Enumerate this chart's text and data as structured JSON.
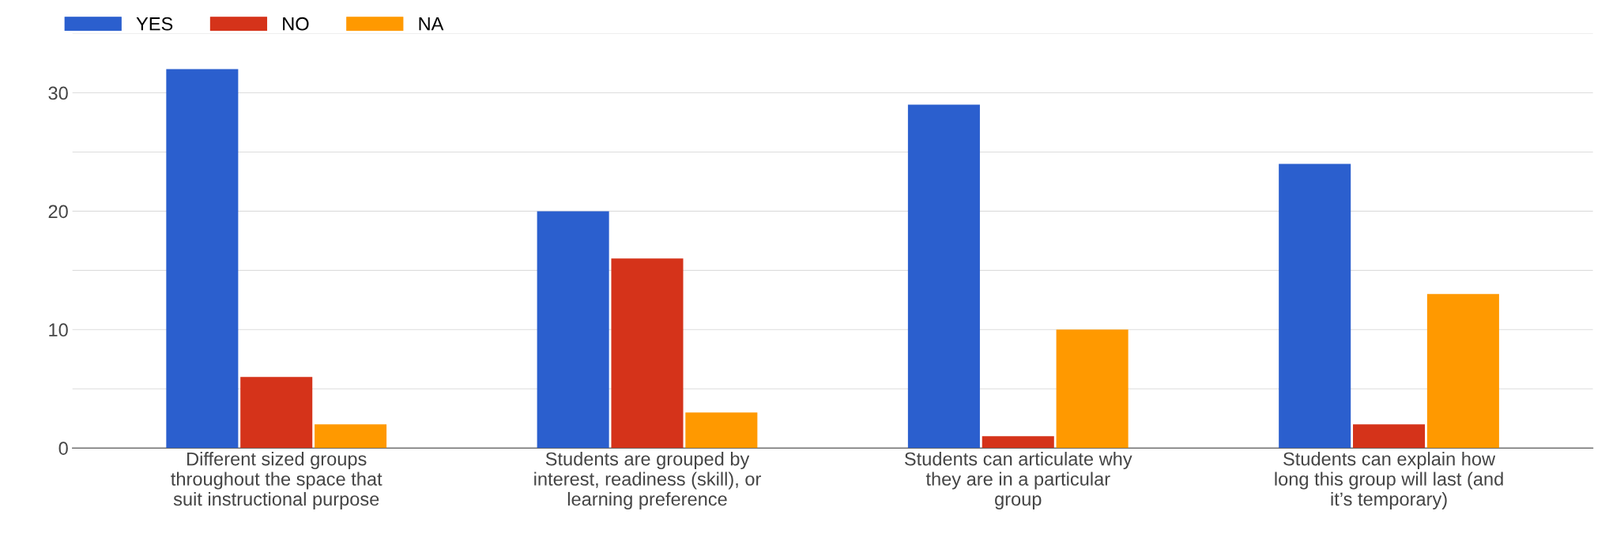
{
  "chart_data": {
    "type": "bar",
    "categories": [
      "Different sized groups\nthroughout the space that\nsuit instructional purpose",
      "Students are grouped by\ninterest, readiness (skill), or\nlearning preference",
      "Students can articulate why\nthey are in a particular\ngroup",
      "Students can explain how\nlong this group will last (and\nit’s temporary)"
    ],
    "series": [
      {
        "name": "YES",
        "color": "#2b5fce",
        "values": [
          32,
          20,
          29,
          24
        ]
      },
      {
        "name": "NO",
        "color": "#d5331a",
        "values": [
          6,
          16,
          1,
          2
        ]
      },
      {
        "name": "NA",
        "color": "#ff9900",
        "values": [
          2,
          3,
          10,
          13
        ]
      }
    ],
    "ylim": [
      0,
      35
    ],
    "yticks": [
      0,
      {
        "value": 5,
        "label": null
      },
      10,
      {
        "value": 15,
        "label": null
      },
      20,
      {
        "value": 25,
        "label": null
      },
      30,
      {
        "value": 35,
        "label": null
      }
    ],
    "grid": "y",
    "legend": "top left"
  }
}
